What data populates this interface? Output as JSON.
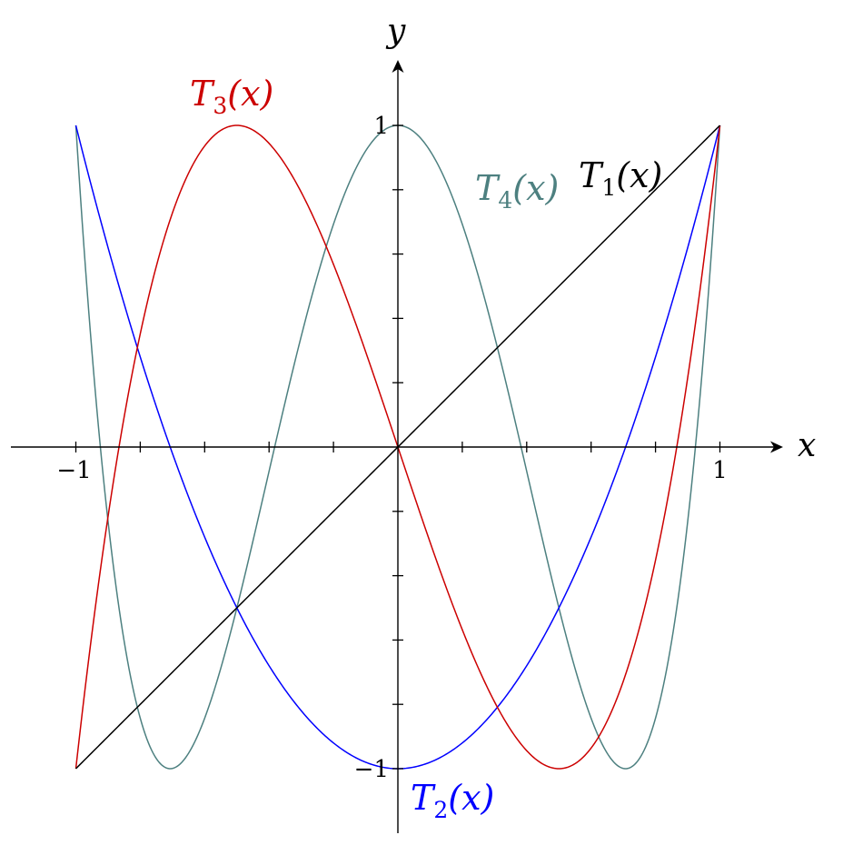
{
  "chart_data": {
    "type": "line",
    "xlabel": "x",
    "ylabel": "y",
    "xlim": [
      -1.2,
      1.2
    ],
    "ylim": [
      -1.2,
      1.2
    ],
    "x_ticks": [
      -1,
      -0.8,
      -0.6,
      -0.4,
      -0.2,
      0.2,
      0.4,
      0.6,
      0.8,
      1
    ],
    "y_ticks": [
      -1,
      -0.8,
      -0.6,
      -0.4,
      -0.2,
      0.2,
      0.4,
      0.6,
      0.8,
      1
    ],
    "x_tick_labels": [
      {
        "value": -1,
        "text": "−1"
      },
      {
        "value": 1,
        "text": "1"
      }
    ],
    "y_tick_labels": [
      {
        "value": -1,
        "text": "−1"
      },
      {
        "value": 1,
        "text": "1"
      }
    ],
    "grid": false,
    "legend": "none",
    "series": [
      {
        "name": "T1(x)",
        "name_main": "T",
        "name_sub": "1",
        "name_arg": "(x)",
        "degree": 1,
        "color": "#000000",
        "x": [
          -1,
          0,
          1
        ],
        "y": [
          -1,
          0,
          1
        ]
      },
      {
        "name": "T2(x)",
        "name_main": "T",
        "name_sub": "2",
        "name_arg": "(x)",
        "degree": 2,
        "color": "#0000ff",
        "x": [
          -1,
          -0.5,
          0,
          0.5,
          1
        ],
        "y": [
          1,
          -0.5,
          -1,
          -0.5,
          1
        ]
      },
      {
        "name": "T3(x)",
        "name_main": "T",
        "name_sub": "3",
        "name_arg": "(x)",
        "degree": 3,
        "color": "#cc0000",
        "x": [
          -1,
          -0.5,
          0,
          0.5,
          1
        ],
        "y": [
          -1,
          1,
          0,
          -1,
          1
        ]
      },
      {
        "name": "T4(x)",
        "name_main": "T",
        "name_sub": "4",
        "name_arg": "(x)",
        "degree": 4,
        "color": "#4d8080",
        "x": [
          -1,
          -0.7071,
          0,
          0.7071,
          1
        ],
        "y": [
          1,
          -1,
          1,
          -1,
          1
        ]
      }
    ]
  }
}
